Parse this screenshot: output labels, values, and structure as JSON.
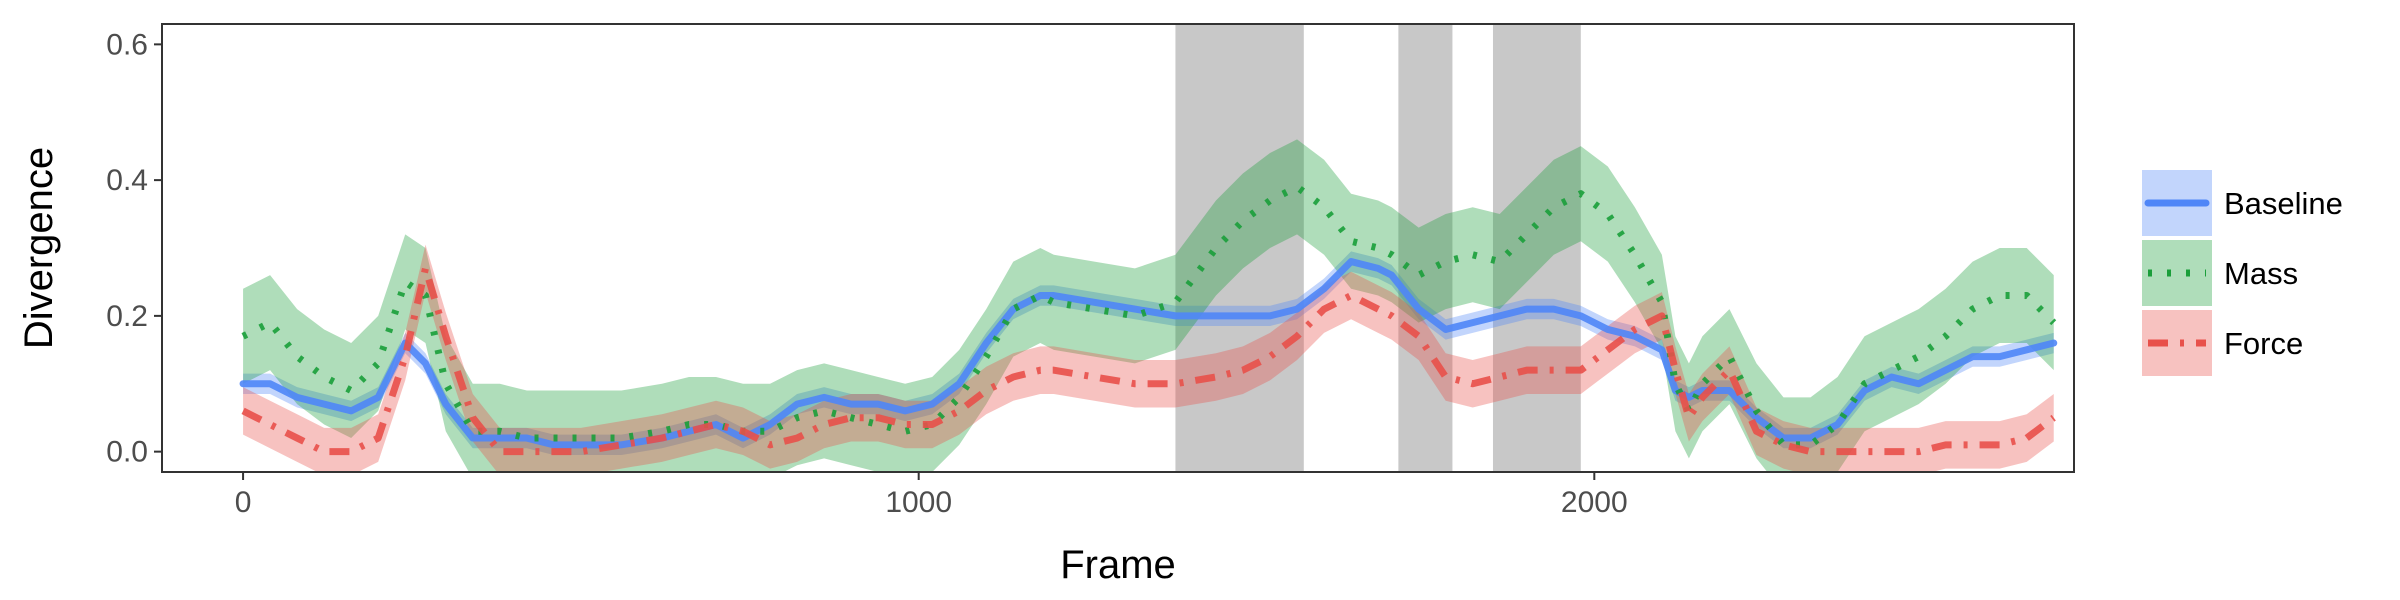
{
  "chart_data": {
    "type": "line",
    "xlabel": "Frame",
    "ylabel": "Divergence",
    "xlim": [
      -120,
      2710
    ],
    "ylim": [
      -0.03,
      0.63
    ],
    "x_ticks": [
      0,
      1000,
      2000
    ],
    "x_tick_labels": [
      "0",
      "1000",
      "2000"
    ],
    "y_ticks": [
      0.0,
      0.2,
      0.4,
      0.6
    ],
    "y_tick_labels": [
      "0.0",
      "0.2",
      "0.4",
      "0.6"
    ],
    "grid": false,
    "legend_position": "right",
    "shaded_regions": [
      [
        1380,
        1570
      ],
      [
        1710,
        1790
      ],
      [
        1850,
        1980
      ]
    ],
    "series": [
      {
        "name": "Baseline",
        "color": "#4f86f7",
        "line_style": "solid",
        "x": [
          0,
          40,
          80,
          120,
          160,
          200,
          240,
          270,
          300,
          340,
          380,
          420,
          460,
          500,
          560,
          620,
          660,
          700,
          740,
          780,
          820,
          860,
          900,
          940,
          980,
          1020,
          1060,
          1100,
          1140,
          1180,
          1200,
          1260,
          1320,
          1380,
          1440,
          1480,
          1520,
          1560,
          1600,
          1640,
          1680,
          1700,
          1740,
          1780,
          1820,
          1860,
          1900,
          1940,
          1980,
          2020,
          2060,
          2100,
          2120,
          2140,
          2160,
          2200,
          2240,
          2280,
          2320,
          2360,
          2400,
          2440,
          2480,
          2520,
          2560,
          2600,
          2640,
          2680
        ],
        "y": [
          0.1,
          0.1,
          0.08,
          0.07,
          0.06,
          0.08,
          0.16,
          0.13,
          0.07,
          0.02,
          0.02,
          0.02,
          0.01,
          0.01,
          0.01,
          0.02,
          0.03,
          0.04,
          0.02,
          0.04,
          0.07,
          0.08,
          0.07,
          0.07,
          0.06,
          0.07,
          0.1,
          0.16,
          0.21,
          0.23,
          0.23,
          0.22,
          0.21,
          0.2,
          0.2,
          0.2,
          0.2,
          0.21,
          0.24,
          0.28,
          0.27,
          0.26,
          0.21,
          0.18,
          0.19,
          0.2,
          0.21,
          0.21,
          0.2,
          0.18,
          0.17,
          0.15,
          0.09,
          0.08,
          0.09,
          0.09,
          0.05,
          0.02,
          0.02,
          0.04,
          0.09,
          0.11,
          0.1,
          0.12,
          0.14,
          0.14,
          0.15,
          0.16
        ],
        "band": 0.015
      },
      {
        "name": "Mass",
        "color": "#1a9e3a",
        "line_style": "dotted",
        "x": [
          0,
          40,
          80,
          120,
          160,
          200,
          240,
          270,
          300,
          340,
          380,
          420,
          460,
          500,
          560,
          620,
          660,
          700,
          740,
          780,
          820,
          860,
          900,
          940,
          980,
          1020,
          1060,
          1100,
          1140,
          1180,
          1200,
          1260,
          1320,
          1380,
          1440,
          1480,
          1520,
          1560,
          1600,
          1640,
          1680,
          1700,
          1740,
          1780,
          1820,
          1860,
          1900,
          1940,
          1980,
          2020,
          2060,
          2100,
          2120,
          2140,
          2160,
          2200,
          2240,
          2280,
          2320,
          2360,
          2400,
          2440,
          2480,
          2520,
          2560,
          2600,
          2640,
          2680
        ],
        "y": [
          0.17,
          0.19,
          0.14,
          0.11,
          0.09,
          0.13,
          0.25,
          0.23,
          0.1,
          0.03,
          0.03,
          0.02,
          0.02,
          0.02,
          0.02,
          0.03,
          0.04,
          0.04,
          0.03,
          0.03,
          0.05,
          0.06,
          0.05,
          0.04,
          0.03,
          0.04,
          0.08,
          0.14,
          0.21,
          0.23,
          0.22,
          0.21,
          0.2,
          0.22,
          0.3,
          0.34,
          0.37,
          0.39,
          0.36,
          0.31,
          0.3,
          0.29,
          0.26,
          0.28,
          0.29,
          0.28,
          0.32,
          0.36,
          0.38,
          0.35,
          0.29,
          0.22,
          0.1,
          0.06,
          0.1,
          0.14,
          0.06,
          0.01,
          0.01,
          0.04,
          0.1,
          0.12,
          0.14,
          0.17,
          0.21,
          0.23,
          0.23,
          0.19
        ],
        "band": 0.07
      },
      {
        "name": "Force",
        "color": "#e8504a",
        "line_style": "dashdot",
        "x": [
          0,
          40,
          80,
          120,
          160,
          200,
          240,
          270,
          300,
          340,
          380,
          420,
          460,
          500,
          560,
          620,
          660,
          700,
          740,
          780,
          820,
          860,
          900,
          940,
          980,
          1020,
          1060,
          1100,
          1140,
          1180,
          1200,
          1260,
          1320,
          1380,
          1440,
          1480,
          1520,
          1560,
          1600,
          1640,
          1680,
          1700,
          1740,
          1780,
          1820,
          1860,
          1900,
          1940,
          1980,
          2020,
          2060,
          2100,
          2120,
          2140,
          2160,
          2200,
          2240,
          2280,
          2320,
          2360,
          2400,
          2440,
          2480,
          2520,
          2560,
          2600,
          2640,
          2680
        ],
        "y": [
          0.06,
          0.04,
          0.02,
          0.0,
          0.0,
          0.02,
          0.14,
          0.27,
          0.17,
          0.05,
          0.0,
          0.0,
          0.0,
          0.0,
          0.01,
          0.02,
          0.03,
          0.04,
          0.03,
          0.01,
          0.02,
          0.04,
          0.05,
          0.05,
          0.04,
          0.04,
          0.06,
          0.09,
          0.11,
          0.12,
          0.12,
          0.11,
          0.1,
          0.1,
          0.11,
          0.12,
          0.14,
          0.17,
          0.21,
          0.23,
          0.21,
          0.2,
          0.17,
          0.11,
          0.1,
          0.11,
          0.12,
          0.12,
          0.12,
          0.15,
          0.18,
          0.2,
          0.12,
          0.05,
          0.08,
          0.12,
          0.03,
          0.01,
          0.0,
          0.0,
          0.0,
          0.0,
          0.0,
          0.01,
          0.01,
          0.01,
          0.02,
          0.05
        ],
        "band": 0.035
      }
    ]
  }
}
